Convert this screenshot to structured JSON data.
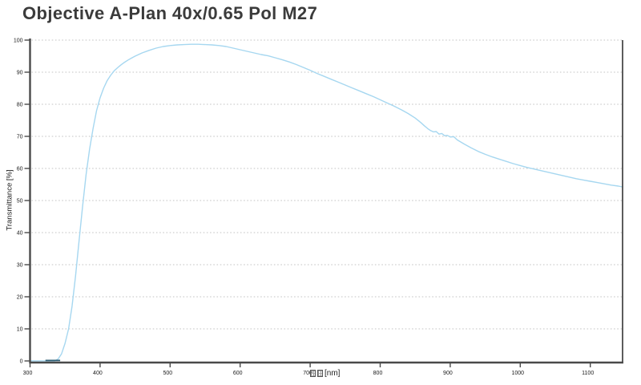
{
  "title": "Objective A-Plan 40x/0.65 Pol M27",
  "chart_data": {
    "type": "line",
    "title": "Objective A-Plan 40x/0.65 Pol M27",
    "ylabel": "Transmittance [%]",
    "xlabel_unit": "[nm]",
    "xlabel_missing_glyph_count": 2,
    "xlim": [
      300,
      1147
    ],
    "ylim": [
      0,
      100
    ],
    "x_ticks": [
      300,
      400,
      500,
      600,
      700,
      800,
      900,
      1000,
      1100
    ],
    "y_ticks": [
      0,
      10,
      20,
      30,
      40,
      50,
      60,
      70,
      80,
      90,
      100
    ],
    "grid": "horizontal-dotted",
    "legend_position": "none",
    "series": [
      {
        "name": "transmittance",
        "points": [
          [
            300,
            0
          ],
          [
            305,
            0
          ],
          [
            310,
            0
          ],
          [
            315,
            0
          ],
          [
            320,
            0
          ],
          [
            325,
            0
          ],
          [
            330,
            0
          ],
          [
            335,
            0
          ],
          [
            340,
            0.6
          ],
          [
            345,
            2.2
          ],
          [
            350,
            5.5
          ],
          [
            355,
            10
          ],
          [
            360,
            17
          ],
          [
            365,
            26.5
          ],
          [
            370,
            37.5
          ],
          [
            375,
            48
          ],
          [
            380,
            58
          ],
          [
            385,
            66
          ],
          [
            390,
            72.5
          ],
          [
            395,
            78
          ],
          [
            400,
            82
          ],
          [
            405,
            85
          ],
          [
            410,
            87.3
          ],
          [
            415,
            89
          ],
          [
            420,
            90.4
          ],
          [
            425,
            91.4
          ],
          [
            430,
            92.3
          ],
          [
            435,
            93.1
          ],
          [
            440,
            93.8
          ],
          [
            445,
            94.4
          ],
          [
            450,
            95
          ],
          [
            460,
            96
          ],
          [
            470,
            96.8
          ],
          [
            480,
            97.5
          ],
          [
            490,
            98
          ],
          [
            500,
            98.3
          ],
          [
            510,
            98.5
          ],
          [
            520,
            98.6
          ],
          [
            530,
            98.7
          ],
          [
            540,
            98.7
          ],
          [
            550,
            98.6
          ],
          [
            560,
            98.5
          ],
          [
            570,
            98.3
          ],
          [
            580,
            98
          ],
          [
            590,
            97.5
          ],
          [
            600,
            97
          ],
          [
            610,
            96.5
          ],
          [
            620,
            96
          ],
          [
            630,
            95.5
          ],
          [
            640,
            95.1
          ],
          [
            650,
            94.5
          ],
          [
            660,
            93.9
          ],
          [
            670,
            93.2
          ],
          [
            680,
            92.4
          ],
          [
            690,
            91.5
          ],
          [
            700,
            90.6
          ],
          [
            710,
            89.6
          ],
          [
            720,
            88.7
          ],
          [
            730,
            87.8
          ],
          [
            740,
            86.9
          ],
          [
            750,
            86
          ],
          [
            760,
            85.1
          ],
          [
            770,
            84.2
          ],
          [
            780,
            83.3
          ],
          [
            790,
            82.4
          ],
          [
            800,
            81.4
          ],
          [
            810,
            80.4
          ],
          [
            820,
            79.4
          ],
          [
            830,
            78.3
          ],
          [
            840,
            77.1
          ],
          [
            850,
            75.7
          ],
          [
            858,
            74.3
          ],
          [
            863,
            73.3
          ],
          [
            868,
            72.4
          ],
          [
            872,
            71.8
          ],
          [
            876,
            71.4
          ],
          [
            880,
            71.5
          ],
          [
            884,
            70.7
          ],
          [
            888,
            70.9
          ],
          [
            892,
            70.2
          ],
          [
            896,
            70.3
          ],
          [
            900,
            69.8
          ],
          [
            905,
            69.9
          ],
          [
            910,
            68.9
          ],
          [
            920,
            67.6
          ],
          [
            930,
            66.4
          ],
          [
            940,
            65.3
          ],
          [
            950,
            64.4
          ],
          [
            960,
            63.6
          ],
          [
            970,
            62.9
          ],
          [
            980,
            62.2
          ],
          [
            990,
            61.5
          ],
          [
            1000,
            60.9
          ],
          [
            1010,
            60.3
          ],
          [
            1020,
            59.8
          ],
          [
            1030,
            59.3
          ],
          [
            1040,
            58.8
          ],
          [
            1050,
            58.3
          ],
          [
            1060,
            57.8
          ],
          [
            1070,
            57.3
          ],
          [
            1080,
            56.8
          ],
          [
            1090,
            56.4
          ],
          [
            1100,
            56
          ],
          [
            1110,
            55.6
          ],
          [
            1120,
            55.2
          ],
          [
            1130,
            54.8
          ],
          [
            1140,
            54.5
          ],
          [
            1147,
            54.2
          ]
        ]
      }
    ],
    "dark_segment": {
      "name": "zero-level-dark-segment",
      "points": [
        [
          322,
          0
        ],
        [
          343,
          0
        ]
      ]
    },
    "colors": {
      "line": "#a6d7f0",
      "dark_segment": "#2d5d73",
      "axis": "#4a4a4a",
      "grid": "#c3c3c3",
      "title_text": "#3b3b3b",
      "background": "#ffffff"
    }
  }
}
